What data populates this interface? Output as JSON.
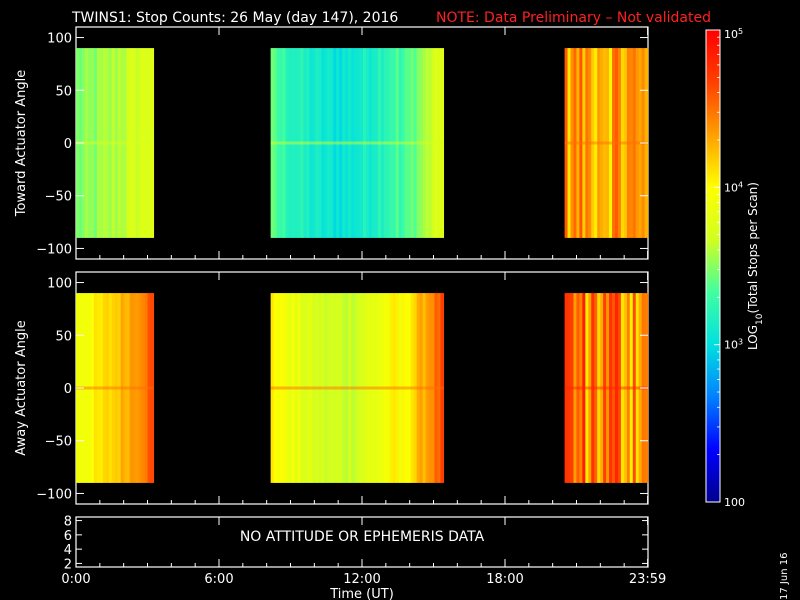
{
  "header": {
    "title": "TWINS1: Stop Counts: 26 May (day 147), 2016",
    "note": "NOTE: Data Preliminary – Not validated",
    "note_color": "#ff2020"
  },
  "side_date": "17 Jun 16",
  "no_data_message": "NO ATTITUDE OR EPHEMERIS DATA",
  "colorbar": {
    "label": "LOG10(Total Stops per Scan)",
    "tick_labels": [
      "10^5",
      "10^4",
      "10^3",
      "100"
    ],
    "tick_values": [
      100000,
      10000,
      1000,
      100
    ],
    "range": [
      100,
      100000
    ],
    "scale": "log",
    "colormap": [
      "#00008c",
      "#0000ff",
      "#0080ff",
      "#00e0e0",
      "#40ffa0",
      "#d0ff20",
      "#ffff00",
      "#ffa000",
      "#ff4000",
      "#ff0000"
    ]
  },
  "chart_data": [
    {
      "type": "heatmap",
      "title": "",
      "xlabel": "",
      "ylabel": "Toward Actuator Angle",
      "xlim": [
        "0:00",
        "24:00"
      ],
      "ylim": [
        -110,
        110
      ],
      "y_ticks": [
        100,
        50,
        0,
        -50,
        -100
      ],
      "y_tick_labels": [
        "100",
        "50",
        "0",
        "−50",
        "−100"
      ],
      "angle_range": [
        -90,
        90
      ],
      "data_blocks": [
        {
          "start": "0:00",
          "end": "3:15",
          "approx_log10_counts": [
            3.4,
            3.8
          ],
          "trend": "rising with time"
        },
        {
          "start": "8:10",
          "end": "15:25",
          "approx_log10_counts": [
            3.0,
            3.8
          ],
          "trend": "dip mid-block, rising toward end"
        },
        {
          "start": "20:30",
          "end": "23:59",
          "approx_log10_counts": [
            3.6,
            4.6
          ],
          "trend": "variable, with streaks"
        }
      ]
    },
    {
      "type": "heatmap",
      "title": "",
      "xlabel": "",
      "ylabel": "Away Actuator Angle",
      "xlim": [
        "0:00",
        "24:00"
      ],
      "ylim": [
        -110,
        110
      ],
      "y_ticks": [
        100,
        50,
        0,
        -50,
        -100
      ],
      "y_tick_labels": [
        "100",
        "50",
        "0",
        "−50",
        "−100"
      ],
      "angle_range": [
        -90,
        90
      ],
      "data_blocks": [
        {
          "start": "0:00",
          "end": "3:15",
          "approx_log10_counts": [
            3.8,
            4.6
          ],
          "trend": "rising with time"
        },
        {
          "start": "8:10",
          "end": "15:25",
          "approx_log10_counts": [
            3.6,
            4.6
          ],
          "trend": "dip mid-block, rising toward end"
        },
        {
          "start": "20:30",
          "end": "23:59",
          "approx_log10_counts": [
            3.3,
            4.9
          ],
          "trend": "variable, with streaks"
        }
      ]
    },
    {
      "type": "line",
      "title": "",
      "xlabel": "Time (UT)",
      "ylabel": "",
      "x_tick_labels": [
        "0:00",
        "6:00",
        "12:00",
        "18:00",
        "23:59"
      ],
      "y_tick_labels": [
        "8",
        "6",
        "4",
        "2"
      ],
      "y_ticks": [
        8,
        6,
        4,
        2
      ],
      "ylim": [
        1.5,
        8.5
      ],
      "series": []
    }
  ]
}
